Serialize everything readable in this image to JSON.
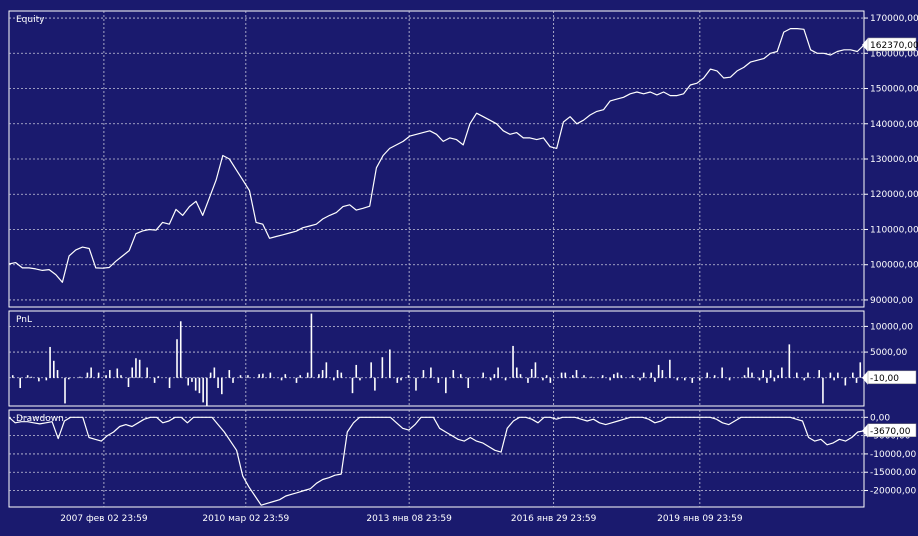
{
  "chart_data": [
    {
      "type": "line",
      "title": "Equity",
      "ylim": [
        88000,
        172000
      ],
      "y_ticks": [
        "170000,00",
        "160000,00",
        "150000,00",
        "140000,00",
        "130000,00",
        "120000,00",
        "110000,00",
        "100000,00",
        "90000,00"
      ],
      "y_tick_values": [
        170000,
        160000,
        150000,
        140000,
        130000,
        120000,
        110000,
        100000,
        90000
      ],
      "last_value_label": "162370,00",
      "last_value": 162370,
      "series": [
        {
          "values": [
            100200,
            100600,
            99100,
            99100,
            98800,
            98400,
            98600,
            97200,
            95000,
            102500,
            104200,
            105000,
            104600,
            99100,
            99000,
            99200,
            101000,
            102500,
            104000,
            108800,
            109600,
            110000,
            109800,
            112000,
            111500,
            115700,
            114000,
            116500,
            118000,
            114000,
            119000,
            124000,
            131000,
            130000,
            127000,
            124000,
            121000,
            112000,
            111500,
            107500,
            108000,
            108500,
            109000,
            109500,
            110500,
            111000,
            111500,
            113000,
            114000,
            114800,
            116500,
            117000,
            115500,
            116000,
            116600,
            127500,
            131000,
            133000,
            134000,
            135000,
            136500,
            137000,
            137500,
            138000,
            137000,
            135000,
            136000,
            135500,
            134000,
            140000,
            143000,
            142000,
            141000,
            140000,
            138000,
            137000,
            137500,
            136000,
            136000,
            135500,
            136000,
            133500,
            133000,
            140500,
            142000,
            140000,
            141000,
            142500,
            143500,
            144000,
            146500,
            147000,
            147500,
            148500,
            149000,
            148500,
            149000,
            148200,
            149000,
            148000,
            148000,
            148500,
            151000,
            151500,
            153000,
            155500,
            155000,
            153000,
            153200,
            155000,
            156000,
            157500,
            158000,
            158500,
            160000,
            160500,
            166000,
            167000,
            167000,
            166800,
            161000,
            160000,
            160000,
            159500,
            160500,
            161000,
            161000,
            160500,
            162370
          ]
        }
      ]
    },
    {
      "type": "bar",
      "title": "PnL",
      "ylim": [
        -5500,
        13000
      ],
      "y_ticks": [
        "10000,00",
        "5000,00",
        "0,00"
      ],
      "y_tick_values": [
        10000,
        5000,
        0
      ],
      "last_value_label": "-10,00",
      "last_value": -10,
      "series": [
        {
          "values": [
            0,
            500,
            0,
            -2000,
            0,
            500,
            200,
            0,
            -700,
            0,
            -500,
            6000,
            3300,
            1500,
            0,
            -5000,
            -300,
            0,
            0,
            200,
            0,
            1000,
            2000,
            0,
            1000,
            0,
            500,
            1500,
            0,
            1800,
            500,
            0,
            -1800,
            2000,
            3800,
            3500,
            0,
            2000,
            0,
            -1000,
            300,
            0,
            0,
            -2000,
            0,
            7500,
            11000,
            0,
            -1500,
            -800,
            -2500,
            -3000,
            -4800,
            -5500,
            1000,
            2000,
            -2000,
            -3200,
            0,
            1500,
            -1000,
            0,
            500,
            0,
            500,
            0,
            0,
            700,
            800,
            0,
            1000,
            0,
            0,
            -500,
            700,
            0,
            0,
            -1000,
            500,
            0,
            1000,
            12500,
            0,
            700,
            1500,
            3000,
            0,
            -500,
            1500,
            1000,
            0,
            0,
            -3000,
            2500,
            -500,
            0,
            0,
            3000,
            -2500,
            0,
            4000,
            0,
            5500,
            0,
            -1000,
            -500,
            0,
            500,
            0,
            -2500,
            0,
            1500,
            0,
            2000,
            0,
            -1000,
            0,
            -3000,
            0,
            1500,
            0,
            700,
            0,
            -2000,
            0,
            0,
            0,
            1000,
            0,
            -500,
            700,
            2000,
            0,
            -500,
            0,
            6200,
            2000,
            700,
            0,
            -1000,
            1700,
            3000,
            0,
            -500,
            500,
            -1000,
            0,
            0,
            1000,
            1000,
            0,
            500,
            1500,
            0,
            500,
            0,
            200,
            0,
            0,
            500,
            0,
            -500,
            700,
            1000,
            500,
            0,
            0,
            500,
            0,
            -500,
            1000,
            0,
            1000,
            -800,
            2500,
            1500,
            0,
            3500,
            0,
            -500,
            0,
            -500,
            0,
            -1000,
            0,
            -500,
            0,
            1000,
            0,
            500,
            0,
            2000,
            0,
            -500,
            0,
            0,
            0,
            500,
            2000,
            1000,
            0,
            -500,
            1500,
            -1000,
            1500,
            -700,
            500,
            2000,
            0,
            6500,
            0,
            1000,
            0,
            -500,
            1000,
            0,
            0,
            1500,
            -5000,
            0,
            1000,
            -500,
            1000,
            0,
            -1500,
            0,
            1000,
            -1000,
            3000,
            -10
          ]
        }
      ]
    },
    {
      "type": "area",
      "title": "Drawdown",
      "ylim": [
        -24500,
        2000
      ],
      "y_ticks": [
        "0,00",
        "-5000,00",
        "-10000,00",
        "-15000,00",
        "-20000,00"
      ],
      "y_tick_values": [
        0,
        -5000,
        -10000,
        -15000,
        -20000
      ],
      "last_value_label": "-3670,00",
      "last_value": -3670,
      "series": [
        {
          "values": [
            0,
            -1500,
            -1200,
            -1200,
            -1500,
            -1800,
            -1500,
            -1200,
            -5800,
            -1000,
            0,
            0,
            0,
            -5500,
            -6000,
            -6500,
            -5000,
            -4000,
            -2500,
            -2000,
            -2500,
            -1500,
            -500,
            0,
            0,
            -1500,
            -1000,
            0,
            0,
            -1500,
            0,
            0,
            0,
            0,
            -2000,
            -4000,
            -6500,
            -9000,
            -16000,
            -19000,
            -21500,
            -24000,
            -23500,
            -23000,
            -22500,
            -21500,
            -21000,
            -20500,
            -20000,
            -19500,
            -18000,
            -17000,
            -16500,
            -15800,
            -15500,
            -4000,
            -1500,
            0,
            0,
            0,
            0,
            0,
            0,
            -1500,
            -3000,
            -3500,
            -2000,
            0,
            0,
            0,
            -3000,
            -4000,
            -5000,
            -6000,
            -6500,
            -5500,
            -6500,
            -7000,
            -8000,
            -9000,
            -9500,
            -3000,
            -1000,
            0,
            0,
            -500,
            -1500,
            0,
            0,
            -500,
            0,
            0,
            0,
            -500,
            -1000,
            -500,
            -1500,
            -2000,
            -1500,
            -1000,
            -500,
            0,
            0,
            0,
            -500,
            -1500,
            -1000,
            0,
            0,
            0,
            0,
            0,
            0,
            0,
            0,
            -500,
            -1500,
            -2000,
            -1000,
            0,
            0,
            0,
            0,
            0,
            0,
            0,
            0,
            0,
            -500,
            -1000,
            -5500,
            -6500,
            -6000,
            -7500,
            -7000,
            -6000,
            -6500,
            -5500,
            -4000,
            -3670
          ]
        }
      ]
    }
  ],
  "x_axis": {
    "tick_labels": [
      "2007 фев 02 23:59",
      "2010 мар 02 23:59",
      "2013 янв 08 23:59",
      "2016 янв 29 23:59",
      "2019 янв 09 23:59"
    ],
    "tick_fractions": [
      0.111,
      0.277,
      0.468,
      0.637,
      0.808
    ]
  },
  "colors": {
    "background": "#1a1a6e",
    "line": "#ffffff",
    "grid": "#c8c8dc",
    "label_box_bg": "#ffffff",
    "label_box_text": "#000000"
  }
}
